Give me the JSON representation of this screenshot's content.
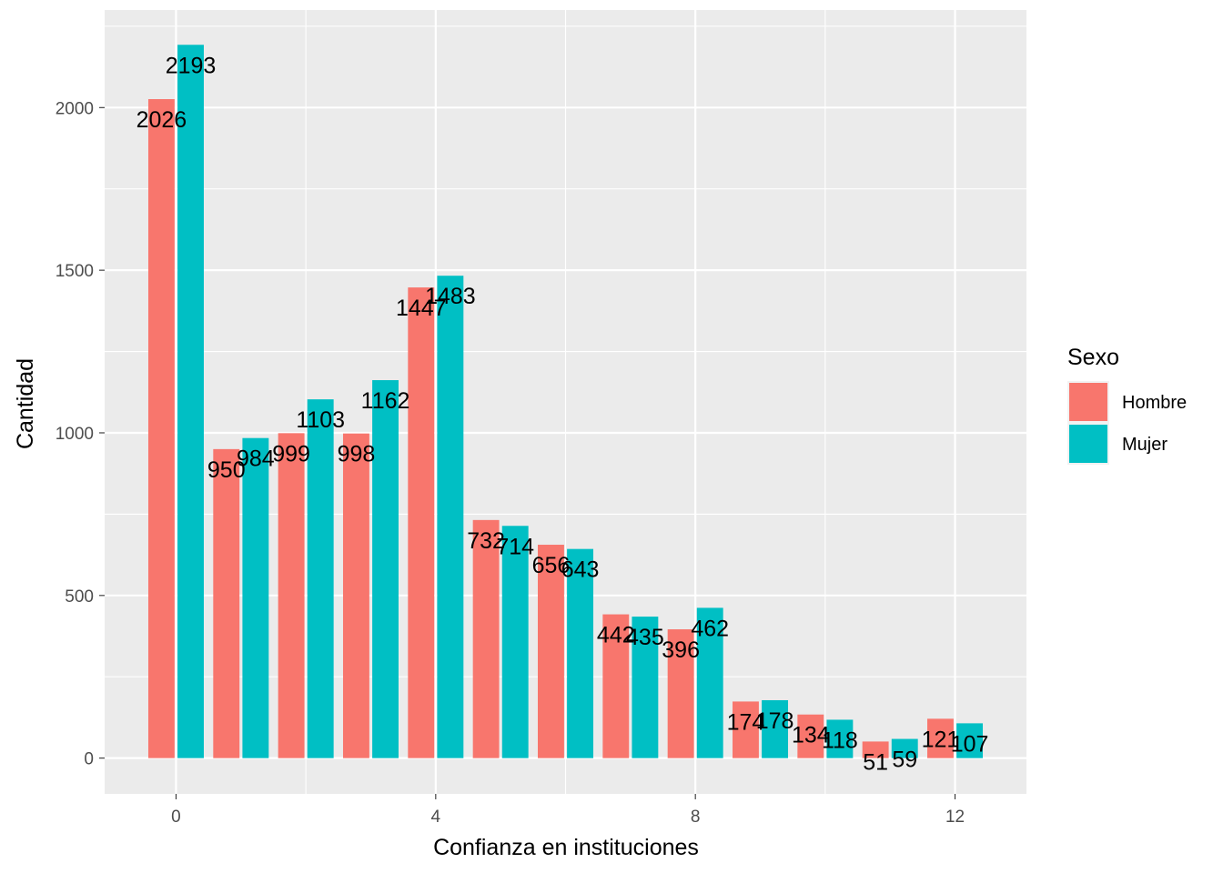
{
  "chart_data": {
    "type": "bar",
    "xlabel": "Confianza en instituciones",
    "ylabel": "Cantidad",
    "x": [
      0,
      1,
      2,
      3,
      4,
      5,
      6,
      7,
      8,
      9,
      10,
      11,
      12
    ],
    "x_ticks": [
      0,
      4,
      8,
      12
    ],
    "x_tick_labels": [
      "0",
      "4",
      "8",
      "12"
    ],
    "xlim": [
      -1.1,
      13.1
    ],
    "y_ticks": [
      0,
      500,
      1000,
      1500,
      2000
    ],
    "y_tick_labels": [
      "0",
      "500",
      "1000",
      "1500",
      "2000"
    ],
    "ylim": [
      -110,
      2300
    ],
    "grid": true,
    "legend": {
      "title": "Sexo",
      "placement": "right"
    },
    "series": [
      {
        "name": "Hombre",
        "color": "#F8766D",
        "values": [
          2026,
          950,
          999,
          998,
          1447,
          732,
          656,
          442,
          396,
          174,
          134,
          51,
          121
        ]
      },
      {
        "name": "Mujer",
        "color": "#00BFC4",
        "values": [
          2193,
          984,
          1103,
          1162,
          1483,
          714,
          643,
          435,
          462,
          178,
          118,
          59,
          107
        ]
      }
    ],
    "data_labels": [
      {
        "x": 0,
        "series": 0,
        "text": "2026"
      },
      {
        "x": 0,
        "series": 1,
        "text": "2193"
      },
      {
        "x": 1,
        "series": 0,
        "text": "950"
      },
      {
        "x": 1,
        "series": 1,
        "text": "984"
      },
      {
        "x": 2,
        "series": 0,
        "text": "999"
      },
      {
        "x": 2,
        "series": 1,
        "text": "1103"
      },
      {
        "x": 3,
        "series": 0,
        "text": "998"
      },
      {
        "x": 3,
        "series": 1,
        "text": "1162"
      },
      {
        "x": 4,
        "series": 0,
        "text": "1447"
      },
      {
        "x": 4,
        "series": 1,
        "text": "1483"
      },
      {
        "x": 5,
        "series": 0,
        "text": "732"
      },
      {
        "x": 5,
        "series": 1,
        "text": "714"
      },
      {
        "x": 6,
        "series": 0,
        "text": "656"
      },
      {
        "x": 6,
        "series": 1,
        "text": "643"
      },
      {
        "x": 7,
        "series": 0,
        "text": "442"
      },
      {
        "x": 7,
        "series": 1,
        "text": "435"
      },
      {
        "x": 8,
        "series": 0,
        "text": "396"
      },
      {
        "x": 8,
        "series": 1,
        "text": "462"
      },
      {
        "x": 9,
        "series": 0,
        "text": "174"
      },
      {
        "x": 9,
        "series": 1,
        "text": "178"
      },
      {
        "x": 10,
        "series": 0,
        "text": "134"
      },
      {
        "x": 10,
        "series": 1,
        "text": "118"
      },
      {
        "x": 11,
        "series": 0,
        "text": "51"
      },
      {
        "x": 11,
        "series": 1,
        "text": "59"
      },
      {
        "x": 12,
        "series": 0,
        "text": "121"
      },
      {
        "x": 12,
        "series": 1,
        "text": "107"
      }
    ],
    "colors": {
      "panel_background": "#EBEBEB",
      "gridline": "#FFFFFF"
    }
  }
}
